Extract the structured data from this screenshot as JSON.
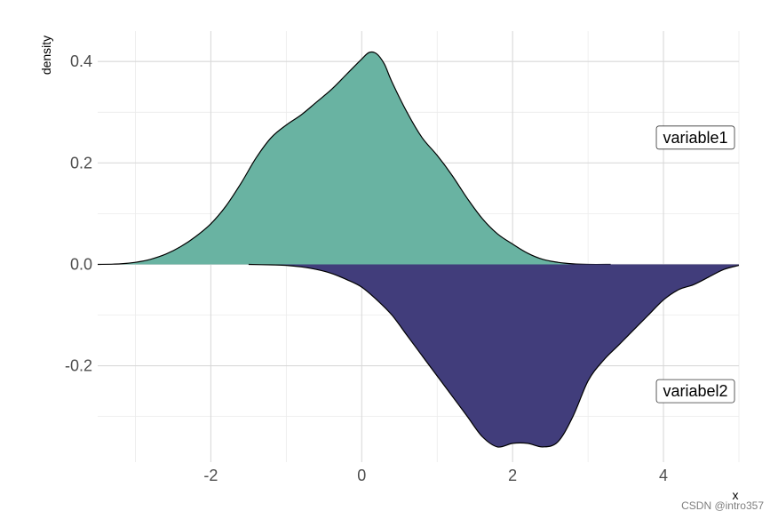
{
  "chart_data": {
    "type": "area",
    "title": "",
    "xlabel": "x",
    "ylabel": "density",
    "xlim": [
      -3.5,
      5.0
    ],
    "ylim": [
      -0.39,
      0.46
    ],
    "x_ticks": [
      -2,
      0,
      2,
      4
    ],
    "x_tick_labels": [
      "-2",
      "0",
      "2",
      "4"
    ],
    "y_ticks": [
      -0.2,
      0.0,
      0.2,
      0.4
    ],
    "y_tick_labels": [
      "-0.2",
      "0.0",
      "0.2",
      "0.4"
    ],
    "grid": true,
    "series": [
      {
        "name": "variable1",
        "color": "#69b3a2",
        "x": [
          -3.5,
          -3.2,
          -3.0,
          -2.8,
          -2.6,
          -2.4,
          -2.2,
          -2.0,
          -1.8,
          -1.6,
          -1.4,
          -1.2,
          -1.0,
          -0.8,
          -0.6,
          -0.4,
          -0.2,
          0.0,
          0.1,
          0.2,
          0.3,
          0.4,
          0.6,
          0.8,
          1.0,
          1.2,
          1.4,
          1.6,
          1.8,
          2.0,
          2.2,
          2.4,
          2.6,
          2.8,
          3.0,
          3.3
        ],
        "y": [
          0.0,
          0.001,
          0.004,
          0.01,
          0.02,
          0.035,
          0.055,
          0.08,
          0.115,
          0.16,
          0.21,
          0.25,
          0.275,
          0.295,
          0.32,
          0.345,
          0.375,
          0.405,
          0.418,
          0.415,
          0.395,
          0.36,
          0.3,
          0.25,
          0.215,
          0.175,
          0.13,
          0.09,
          0.06,
          0.04,
          0.022,
          0.01,
          0.004,
          0.001,
          0.0,
          0.0
        ],
        "label_x": 4.4,
        "label_y": 0.25
      },
      {
        "name": "variabel2",
        "color": "#413d7b",
        "x": [
          -1.5,
          -1.2,
          -1.0,
          -0.8,
          -0.6,
          -0.4,
          -0.2,
          0.0,
          0.2,
          0.4,
          0.6,
          0.8,
          1.0,
          1.2,
          1.4,
          1.6,
          1.8,
          2.0,
          2.2,
          2.4,
          2.6,
          2.8,
          3.0,
          3.2,
          3.4,
          3.6,
          3.8,
          4.0,
          4.2,
          4.4,
          4.6,
          4.8,
          5.0
        ],
        "y": [
          0.0,
          -0.001,
          -0.002,
          -0.005,
          -0.01,
          -0.018,
          -0.03,
          -0.045,
          -0.07,
          -0.1,
          -0.14,
          -0.18,
          -0.22,
          -0.26,
          -0.3,
          -0.34,
          -0.36,
          -0.353,
          -0.353,
          -0.36,
          -0.35,
          -0.3,
          -0.23,
          -0.19,
          -0.16,
          -0.13,
          -0.1,
          -0.07,
          -0.05,
          -0.04,
          -0.025,
          -0.01,
          -0.002
        ],
        "label_x": 4.4,
        "label_y": -0.25
      }
    ]
  },
  "watermark": "CSDN @intro357"
}
